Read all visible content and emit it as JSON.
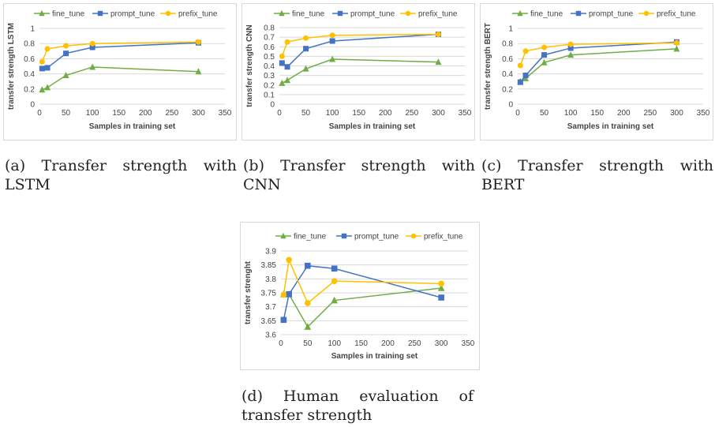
{
  "chart_data": [
    {
      "id": "a",
      "type": "line",
      "caption": "(a) Transfer strength with LSTM",
      "xlabel": "Samples in training set",
      "ylabel": "transfer strength LSTM",
      "xlim": [
        0,
        350
      ],
      "xticks": [
        0,
        50,
        100,
        150,
        200,
        250,
        300,
        350
      ],
      "ylim": [
        0,
        1
      ],
      "yticks": [
        "0",
        "0.2",
        "0.4",
        "0.6",
        "0.8",
        "1"
      ],
      "ytick_values": [
        0,
        0.2,
        0.4,
        0.6,
        0.8,
        1
      ],
      "grid": true,
      "legend": "top",
      "series": [
        {
          "name": "fine_tune",
          "color": "#70ad47",
          "marker": "triangle",
          "x": [
            5,
            15,
            50,
            100,
            300
          ],
          "values": [
            0.19,
            0.22,
            0.38,
            0.49,
            0.43
          ]
        },
        {
          "name": "prompt_tune",
          "color": "#4472c4",
          "marker": "square",
          "x": [
            5,
            15,
            50,
            100,
            300
          ],
          "values": [
            0.47,
            0.48,
            0.67,
            0.75,
            0.81
          ]
        },
        {
          "name": "prefix_tune",
          "color": "#ffc000",
          "marker": "circle",
          "x": [
            5,
            15,
            50,
            100,
            300
          ],
          "values": [
            0.56,
            0.73,
            0.77,
            0.8,
            0.82
          ]
        }
      ]
    },
    {
      "id": "b",
      "type": "line",
      "caption": "(b) Transfer strength with CNN",
      "xlabel": "Samples in training set",
      "ylabel": "transfer strength CNN",
      "xlim": [
        0,
        350
      ],
      "xticks": [
        0,
        50,
        100,
        150,
        200,
        250,
        300,
        350
      ],
      "ylim": [
        0,
        0.8
      ],
      "yticks": [
        "0",
        "0.1",
        "0.2",
        "0.3",
        "0.4",
        "0.5",
        "0.6",
        "0.7",
        "0.8"
      ],
      "ytick_values": [
        0,
        0.1,
        0.2,
        0.3,
        0.4,
        0.5,
        0.6,
        0.7,
        0.8
      ],
      "grid": true,
      "legend": "top",
      "series": [
        {
          "name": "fine_tune",
          "color": "#70ad47",
          "marker": "triangle",
          "x": [
            5,
            15,
            50,
            100,
            300
          ],
          "values": [
            0.22,
            0.25,
            0.37,
            0.47,
            0.44
          ]
        },
        {
          "name": "prompt_tune",
          "color": "#4472c4",
          "marker": "square",
          "x": [
            5,
            15,
            50,
            100,
            300
          ],
          "values": [
            0.43,
            0.39,
            0.58,
            0.66,
            0.73
          ]
        },
        {
          "name": "prefix_tune",
          "color": "#ffc000",
          "marker": "circle",
          "x": [
            5,
            15,
            50,
            100,
            300
          ],
          "values": [
            0.5,
            0.65,
            0.69,
            0.72,
            0.73
          ]
        }
      ]
    },
    {
      "id": "c",
      "type": "line",
      "caption": "(c) Transfer strength with BERT",
      "xlabel": "Samples in training set",
      "ylabel": "transfer strength BERT",
      "xlim": [
        0,
        350
      ],
      "xticks": [
        0,
        50,
        100,
        150,
        200,
        250,
        300,
        350
      ],
      "ylim": [
        0,
        1
      ],
      "yticks": [
        "0",
        "0.2",
        "0.4",
        "0.6",
        "0.8",
        "1"
      ],
      "ytick_values": [
        0,
        0.2,
        0.4,
        0.6,
        0.8,
        1
      ],
      "grid": true,
      "legend": "top",
      "series": [
        {
          "name": "fine_tune",
          "color": "#70ad47",
          "marker": "triangle",
          "x": [
            5,
            15,
            50,
            100,
            300
          ],
          "values": [
            0.3,
            0.34,
            0.55,
            0.65,
            0.73
          ]
        },
        {
          "name": "prompt_tune",
          "color": "#4472c4",
          "marker": "square",
          "x": [
            5,
            15,
            50,
            100,
            300
          ],
          "values": [
            0.29,
            0.38,
            0.65,
            0.74,
            0.82
          ]
        },
        {
          "name": "prefix_tune",
          "color": "#ffc000",
          "marker": "circle",
          "x": [
            5,
            15,
            50,
            100,
            300
          ],
          "values": [
            0.51,
            0.7,
            0.75,
            0.79,
            0.81
          ]
        }
      ]
    },
    {
      "id": "d",
      "type": "line",
      "caption": "(d) Human evaluation of transfer strength",
      "xlabel": "Samples in training set",
      "ylabel": "transfer strenght",
      "xlim": [
        0,
        350
      ],
      "xticks": [
        0,
        50,
        100,
        150,
        200,
        250,
        300,
        350
      ],
      "ylim": [
        3.6,
        3.9
      ],
      "yticks": [
        "3.6",
        "3.65",
        "3.7",
        "3.75",
        "3.8",
        "3.85",
        "3.9"
      ],
      "ytick_values": [
        3.6,
        3.65,
        3.7,
        3.75,
        3.8,
        3.85,
        3.9
      ],
      "grid": true,
      "legend": "top",
      "series": [
        {
          "name": "fine_tune",
          "color": "#70ad47",
          "marker": "triangle",
          "x": [
            5,
            15,
            50,
            100,
            300
          ],
          "values": [
            3.745,
            3.745,
            3.628,
            3.723,
            3.767
          ]
        },
        {
          "name": "prompt_tune",
          "color": "#4472c4",
          "marker": "square",
          "x": [
            5,
            15,
            50,
            100,
            300
          ],
          "values": [
            3.653,
            3.745,
            3.847,
            3.837,
            3.733
          ]
        },
        {
          "name": "prefix_tune",
          "color": "#ffc000",
          "marker": "circle",
          "x": [
            5,
            15,
            50,
            100,
            300
          ],
          "values": [
            3.743,
            3.868,
            3.713,
            3.792,
            3.783
          ]
        }
      ]
    }
  ]
}
